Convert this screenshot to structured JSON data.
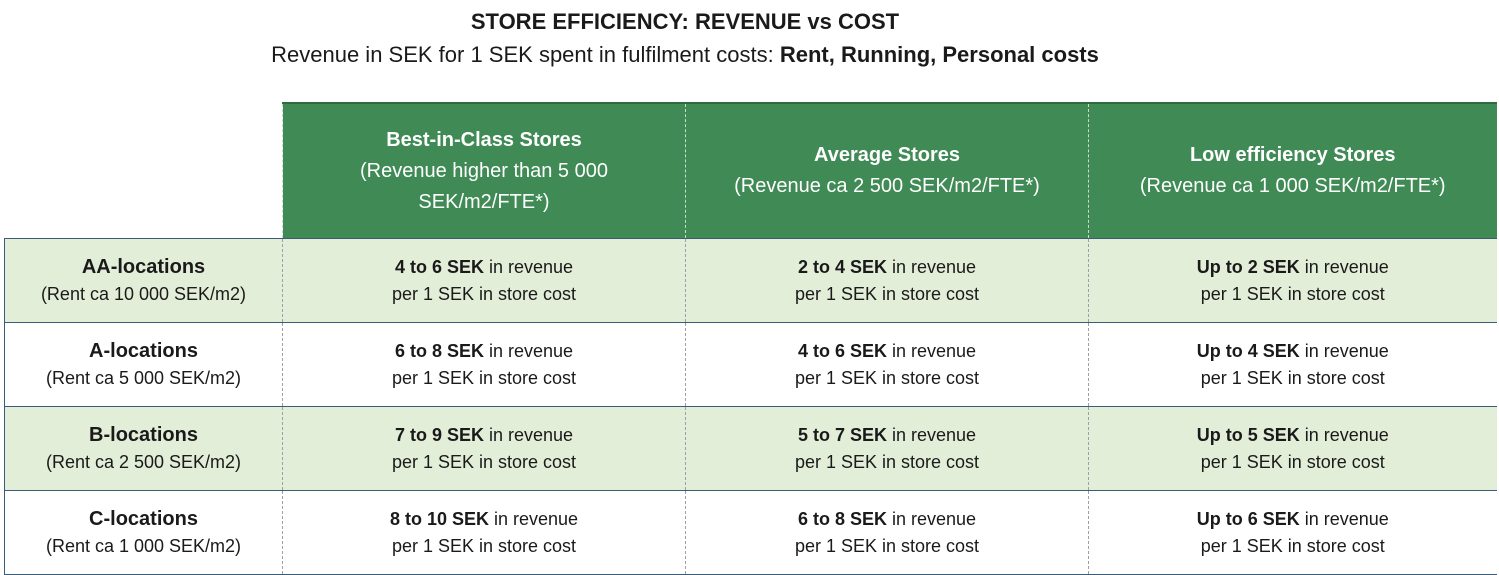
{
  "title": "STORE EFFICIENCY: REVENUE vs COST",
  "subtitle_prefix": "Revenue in SEK for 1 SEK spent in fulfilment costs: ",
  "subtitle_bold": "Rent, Running, Personal costs",
  "columns": [
    {
      "name": "Best-in-Class Stores",
      "desc": "(Revenue higher than 5 000 SEK/m2/FTE*)"
    },
    {
      "name": "Average Stores",
      "desc": "(Revenue ca 2 500 SEK/m2/FTE*)"
    },
    {
      "name": "Low efficiency Stores",
      "desc": "(Revenue ca 1 000 SEK/m2/FTE*)"
    }
  ],
  "cell_suffix": " in revenue",
  "cell_line2": "per 1 SEK in store cost",
  "rows": [
    {
      "name": "AA-locations",
      "desc": "(Rent ca 10 000 SEK/m2)",
      "cells": [
        "4 to 6 SEK",
        "2 to 4 SEK",
        "Up to 2 SEK"
      ]
    },
    {
      "name": "A-locations",
      "desc": "(Rent ca 5 000 SEK/m2)",
      "cells": [
        "6 to 8 SEK",
        "4 to 6 SEK",
        "Up to 4 SEK"
      ]
    },
    {
      "name": "B-locations",
      "desc": "(Rent ca 2 500 SEK/m2)",
      "cells": [
        "7 to 9 SEK",
        "5 to 7 SEK",
        "Up to 5 SEK"
      ]
    },
    {
      "name": "C-locations",
      "desc": "(Rent ca 1 000 SEK/m2)",
      "cells": [
        "8 to 10 SEK",
        "6 to 8 SEK",
        "Up to 6 SEK"
      ]
    }
  ],
  "colors": {
    "header_green": "#3f8a55",
    "row_shade": "#e3eed9",
    "border_blue": "#3b5b76"
  }
}
